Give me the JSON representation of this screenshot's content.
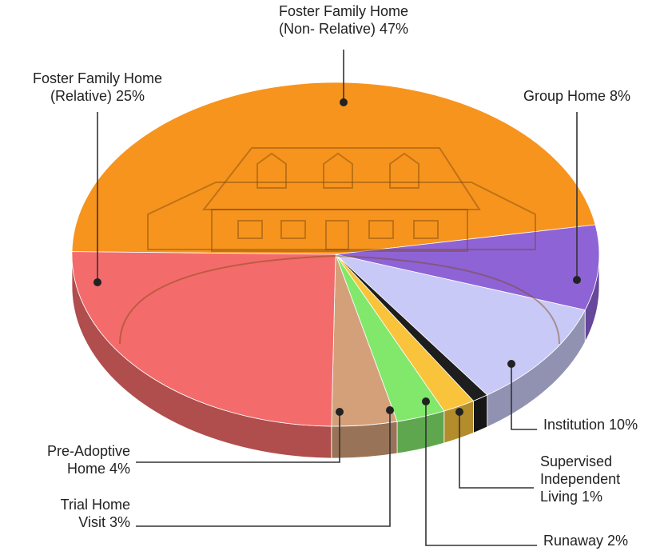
{
  "chart_data": {
    "type": "pie",
    "categories": [
      [
        "Foster Family Home",
        "(Non- Relative)"
      ],
      [
        "Group Home"
      ],
      [
        "Institution"
      ],
      [
        "Supervised",
        "Independent",
        "Living"
      ],
      [
        "Runaway"
      ],
      [
        "Trial Home",
        "Visit"
      ],
      [
        "Pre-Adoptive",
        "Home"
      ],
      [
        "Foster Family Home",
        "(Relative)"
      ]
    ],
    "values": [
      47,
      8,
      10,
      1,
      2,
      3,
      4,
      25
    ],
    "value_labels": [
      "47%",
      "8%",
      "10%",
      "1%",
      "2%",
      "3%",
      "4%",
      "25%"
    ],
    "colors": [
      "#f7941d",
      "#8e63d6",
      "#c9c9f7",
      "#1e1e1e",
      "#f9c33c",
      "#82e86c",
      "#d4a07a",
      "#f46b6b"
    ]
  }
}
